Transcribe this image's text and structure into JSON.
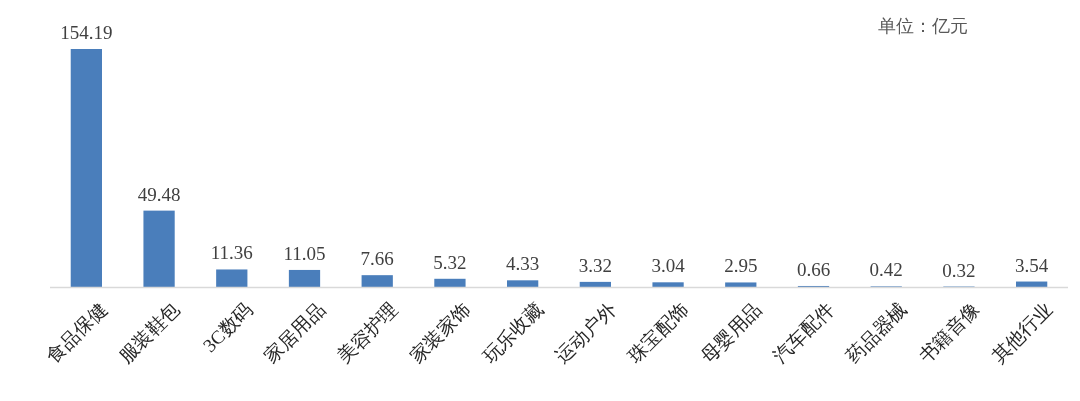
{
  "chart_data": {
    "type": "bar",
    "categories": [
      "食品保健",
      "服装鞋包",
      "3C数码",
      "家居用品",
      "美容护理",
      "家装家饰",
      "玩乐收藏",
      "运动户外",
      "珠宝配饰",
      "母婴用品",
      "汽车配件",
      "药品器械",
      "书籍音像",
      "其他行业"
    ],
    "values": [
      154.19,
      49.48,
      11.36,
      11.05,
      7.66,
      5.32,
      4.33,
      3.32,
      3.04,
      2.95,
      0.66,
      0.42,
      0.32,
      3.54
    ],
    "color": "#4a7ebb",
    "data_labels": true,
    "annotations": [
      "单位：亿元"
    ]
  }
}
